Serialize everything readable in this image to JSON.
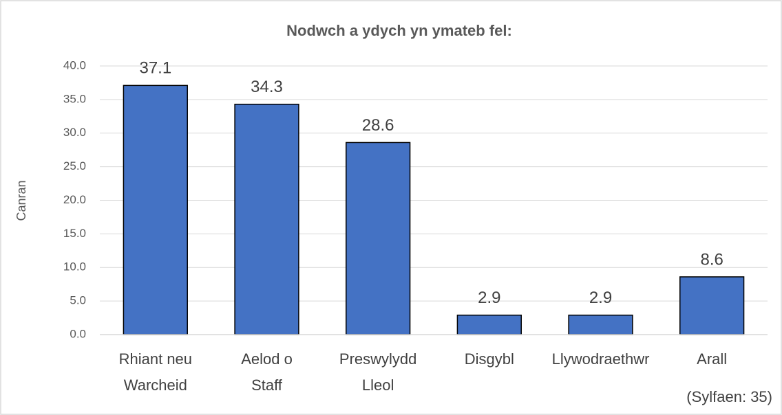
{
  "chart_data": {
    "type": "bar",
    "title": "Nodwch a ydych yn ymateb fel:",
    "categories": [
      "Rhiant neu Warcheid",
      "Aelod o Staff",
      "Preswylydd Lleol",
      "Disgybl",
      "Llywodraethwr",
      "Arall"
    ],
    "values": [
      37.1,
      34.3,
      28.6,
      2.9,
      2.9,
      8.6
    ],
    "color": "#4472c4",
    "ylabel": "Canran",
    "ylim": [
      0,
      40
    ],
    "yticks": [
      {
        "value": 0,
        "label": "0.0"
      },
      {
        "value": 5,
        "label": "5.0"
      },
      {
        "value": 10,
        "label": "10.0"
      },
      {
        "value": 15,
        "label": "15.0"
      },
      {
        "value": 20,
        "label": "20.0"
      },
      {
        "value": 25,
        "label": "25.0"
      },
      {
        "value": 30,
        "label": "30.0"
      },
      {
        "value": 35,
        "label": "35.0"
      },
      {
        "value": 40,
        "label": "40.0"
      }
    ],
    "grid": true,
    "annotation": "(Sylfaen: 35)"
  }
}
